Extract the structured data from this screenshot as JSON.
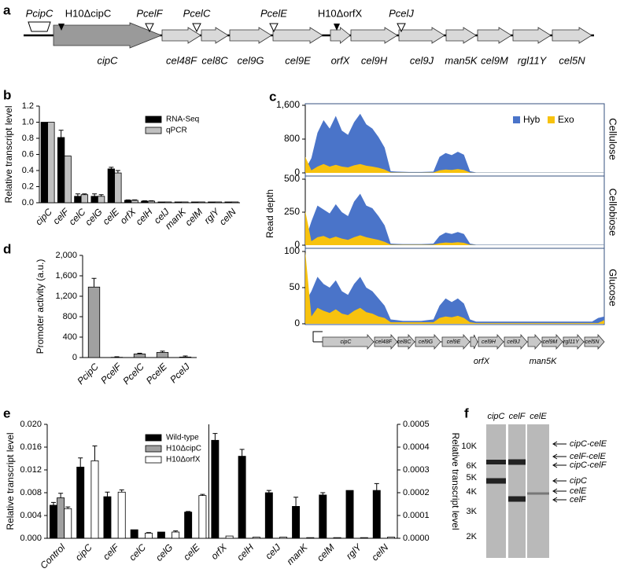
{
  "panel_labels": [
    "a",
    "b",
    "c",
    "d",
    "e",
    "f"
  ],
  "gene_map": {
    "promoters": [
      "PcipC",
      "PcelF",
      "PcelC",
      "PcelE",
      "PcelJ"
    ],
    "insertions": [
      "H10ΔcipC",
      "H10ΔorfX"
    ],
    "genes": [
      "cipC",
      "cel48F",
      "cel8C",
      "cel9G",
      "cel9E",
      "orfX",
      "cel9H",
      "cel9J",
      "man5K",
      "cel9M",
      "rgl11Y",
      "cel5N"
    ]
  },
  "chart_data": [
    {
      "type": "bar",
      "ylabel": "Relative transcript level",
      "categories": [
        "cipC",
        "celF",
        "celC",
        "celG",
        "celE",
        "orfX",
        "celH",
        "celJ",
        "manK",
        "celM",
        "rglY",
        "celN"
      ],
      "series": [
        {
          "name": "RNA-Seq",
          "color": "#000000",
          "values": [
            1.0,
            0.81,
            0.08,
            0.08,
            0.42,
            0.03,
            0.02,
            0.01,
            0.01,
            0.01,
            0.01,
            0.01
          ],
          "errors": [
            null,
            0.09,
            0.03,
            0.03,
            0.02,
            0.005,
            0.005,
            null,
            null,
            null,
            null,
            null
          ]
        },
        {
          "name": "qPCR",
          "color": "#c0c0c0",
          "values": [
            1.0,
            0.58,
            0.1,
            0.08,
            0.37,
            0.03,
            0.02,
            0.01,
            0.01,
            0.01,
            0.01,
            0.01
          ],
          "errors": [
            null,
            null,
            0.01,
            0.02,
            0.03,
            0.005,
            0.005,
            null,
            null,
            null,
            null,
            null
          ]
        }
      ],
      "ylim": [
        0,
        1.2
      ],
      "yticks": [
        {
          "value": 0,
          "label": "0.0"
        },
        0.2,
        0.4,
        0.6,
        0.8,
        {
          "value": 1,
          "label": "1.0"
        },
        1.2
      ]
    },
    {
      "type": "area",
      "title": "Cellulose",
      "series": [
        {
          "name": "Hyb",
          "color": "#4a74c9",
          "values": [
            80,
            350,
            950,
            1250,
            1050,
            1350,
            1000,
            900,
            1200,
            1400,
            1150,
            1050,
            850,
            600,
            40,
            30,
            25,
            20,
            20,
            20,
            25,
            30,
            380,
            470,
            420,
            500,
            430,
            40,
            10,
            10,
            10,
            10,
            10,
            10,
            10,
            10,
            10,
            10,
            10,
            10,
            10,
            10,
            10,
            10,
            10,
            10,
            10,
            10,
            10,
            10
          ]
        },
        {
          "name": "Exo",
          "color": "#f7c20e",
          "values": [
            380,
            60,
            150,
            210,
            150,
            190,
            150,
            130,
            180,
            210,
            170,
            150,
            120,
            80,
            10,
            8,
            6,
            5,
            5,
            5,
            6,
            8,
            60,
            80,
            70,
            90,
            70,
            8,
            2,
            2,
            2,
            2,
            2,
            2,
            2,
            2,
            2,
            2,
            2,
            2,
            2,
            2,
            2,
            2,
            2,
            2,
            2,
            2,
            2,
            2
          ]
        }
      ],
      "ylim": [
        0,
        1600
      ],
      "yticks": [
        0,
        800,
        {
          "value": 1600,
          "label": "1,600"
        }
      ]
    },
    {
      "type": "area",
      "title": "Cellobiose",
      "ylabel": "Read depth",
      "series": [
        {
          "color": "#4a74c9",
          "values": [
            40,
            180,
            300,
            270,
            240,
            310,
            250,
            220,
            330,
            390,
            300,
            280,
            220,
            150,
            12,
            10,
            8,
            8,
            8,
            8,
            10,
            12,
            70,
            95,
            85,
            100,
            85,
            12,
            4,
            4,
            4,
            4,
            4,
            4,
            4,
            4,
            4,
            4,
            4,
            4,
            4,
            4,
            4,
            4,
            4,
            4,
            4,
            4,
            4,
            4
          ]
        },
        {
          "color": "#f7c20e",
          "values": [
            260,
            30,
            60,
            70,
            50,
            65,
            50,
            40,
            60,
            75,
            60,
            50,
            40,
            25,
            4,
            3,
            3,
            3,
            3,
            3,
            3,
            4,
            15,
            20,
            18,
            22,
            18,
            3,
            1,
            1,
            1,
            1,
            1,
            1,
            1,
            1,
            1,
            1,
            1,
            1,
            1,
            1,
            1,
            1,
            1,
            1,
            1,
            1,
            1,
            1
          ]
        }
      ],
      "ylim": [
        0,
        500
      ],
      "yticks": [
        0,
        250,
        500
      ]
    },
    {
      "type": "area",
      "title": "Glucose",
      "series": [
        {
          "color": "#4a74c9",
          "values": [
            30,
            45,
            65,
            55,
            50,
            60,
            45,
            40,
            55,
            65,
            50,
            45,
            35,
            25,
            6,
            5,
            4,
            4,
            4,
            4,
            5,
            6,
            25,
            35,
            30,
            35,
            28,
            6,
            3,
            3,
            3,
            3,
            3,
            3,
            3,
            3,
            3,
            3,
            3,
            3,
            3,
            3,
            3,
            3,
            3,
            3,
            3,
            3,
            8,
            10
          ]
        },
        {
          "color": "#f7c20e",
          "values": [
            100,
            10,
            22,
            18,
            15,
            20,
            14,
            12,
            18,
            22,
            16,
            14,
            10,
            8,
            2,
            2,
            2,
            2,
            2,
            2,
            2,
            2,
            8,
            10,
            9,
            11,
            8,
            2,
            1,
            1,
            1,
            1,
            1,
            1,
            1,
            1,
            1,
            1,
            1,
            1,
            1,
            1,
            1,
            1,
            1,
            1,
            1,
            1,
            1,
            5
          ]
        }
      ],
      "ylim": [
        0,
        100
      ],
      "yticks": [
        0,
        50,
        100
      ]
    },
    {
      "type": "bar",
      "ylabel": "Promoter activity (a.u.)",
      "categories": [
        "PcipC",
        "PcelF",
        "PcelC",
        "PcelE",
        "PcelJ"
      ],
      "values": [
        1380,
        5,
        70,
        100,
        10
      ],
      "errors": [
        170,
        10,
        15,
        25,
        20
      ],
      "color": "#a0a0a0",
      "ylim": [
        0,
        2000
      ],
      "yticks": [
        0,
        400,
        800,
        {
          "value": 1200,
          "label": "1,200"
        },
        {
          "value": 1600,
          "label": "1,600"
        },
        {
          "value": 2000,
          "label": "2,000"
        }
      ]
    },
    {
      "type": "bar",
      "ylabel": "Relative transcript level",
      "y2label": "Relative transcript level",
      "categories": [
        "Control",
        "cipC",
        "celF",
        "celC",
        "celG",
        "celE",
        "orfX",
        "celH",
        "celJ",
        "manK",
        "celM",
        "rglY",
        "celN"
      ],
      "series": [
        {
          "name": "Wild-type",
          "color": "#000000",
          "values": [
            0.0058,
            0.0125,
            0.0073,
            0.0015,
            0.0011,
            0.0046,
            0.00043,
            0.00036,
            0.0002,
            0.00014,
            0.00019,
            0.00021,
            0.00021
          ],
          "errors": [
            0.0005,
            0.0016,
            0.0008,
            null,
            null,
            0.0001,
            3e-05,
            3e-05,
            1e-05,
            4e-05,
            1e-05,
            null,
            3e-05
          ],
          "axis": [
            "y",
            "y",
            "y",
            "y",
            "y",
            "y",
            "y2",
            "y2",
            "y2",
            "y2",
            "y2",
            "y2",
            "y2"
          ]
        },
        {
          "name": "H10ΔcipC",
          "color": "#a0a0a0",
          "values": [
            0.0071,
            null,
            null,
            null,
            null,
            null,
            null,
            null,
            null,
            null,
            null,
            null,
            null
          ],
          "errors": [
            0.0008,
            null,
            null,
            null,
            null,
            null,
            null,
            null,
            null,
            null,
            null,
            null,
            null
          ],
          "axis": [
            "y",
            "y",
            "y",
            "y",
            "y",
            "y",
            "y2",
            "y2",
            "y2",
            "y2",
            "y2",
            "y2",
            "y2"
          ]
        },
        {
          "name": "H10ΔorfX",
          "color": "#ffffff",
          "values": [
            0.0052,
            0.0136,
            0.0081,
            0.0009,
            0.0011,
            0.0075,
            1e-05,
            5e-06,
            5e-06,
            3e-06,
            3e-06,
            3e-06,
            5e-06
          ],
          "errors": [
            0.0003,
            0.0026,
            0.0004,
            0.0001,
            0.0002,
            0.0002,
            null,
            null,
            null,
            null,
            null,
            null,
            null
          ],
          "axis": [
            "y",
            "y",
            "y",
            "y",
            "y",
            "y",
            "y2",
            "y2",
            "y2",
            "y2",
            "y2",
            "y2",
            "y2"
          ]
        }
      ],
      "ylim": [
        0,
        0.02
      ],
      "yticks": [
        {
          "value": 0,
          "label": "0.000"
        },
        {
          "value": 0.004,
          "label": "0.004"
        },
        {
          "value": 0.008,
          "label": "0.008"
        },
        {
          "value": 0.012,
          "label": "0.012"
        },
        {
          "value": 0.016,
          "label": "0.016"
        },
        {
          "value": 0.02,
          "label": "0.020"
        }
      ],
      "y2lim": [
        0,
        0.0005
      ],
      "y2ticks": [
        {
          "value": 0,
          "label": "0.0000"
        },
        {
          "value": 0.0001,
          "label": "0.0001"
        },
        {
          "value": 0.0002,
          "label": "0.0002"
        },
        {
          "value": 0.0003,
          "label": "0.0003"
        },
        {
          "value": 0.0004,
          "label": "0.0004"
        },
        {
          "value": 0.0005,
          "label": "0.0005"
        }
      ]
    }
  ],
  "c_track": {
    "genes": [
      "cipC",
      "cel48F",
      "cel8C",
      "cel9G",
      "cel9E",
      "cel9H",
      "cel9J",
      "cel9M",
      "rgl11Y",
      "cel5N"
    ],
    "below": [
      "orfX",
      "man5K"
    ]
  },
  "gel": {
    "lanes": [
      "cipC",
      "celF",
      "celE"
    ],
    "sizes": [
      "10K",
      "6K",
      "5K",
      "4K",
      "3K",
      "2K"
    ],
    "bands": [
      "cipC-celE",
      "celF-celE",
      "cipC-celF",
      "cipC",
      "celE",
      "celF"
    ]
  }
}
